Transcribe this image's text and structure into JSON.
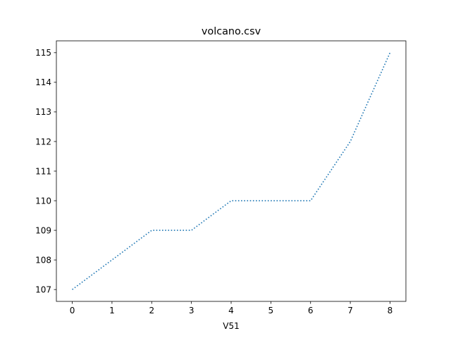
{
  "chart_data": {
    "type": "line",
    "title": "volcano.csv",
    "xlabel": "V51",
    "ylabel": "",
    "x": [
      0,
      1,
      2,
      3,
      4,
      5,
      6,
      7,
      8
    ],
    "series": [
      {
        "values": [
          107,
          108,
          109,
          109,
          110,
          110,
          110,
          112,
          115
        ],
        "color": "#1f77b4",
        "line_style": "dotted"
      }
    ],
    "xlim": [
      -0.4,
      8.4
    ],
    "ylim": [
      106.6,
      115.4
    ],
    "xticks": [
      0,
      1,
      2,
      3,
      4,
      5,
      6,
      7,
      8
    ],
    "yticks": [
      107,
      108,
      109,
      110,
      111,
      112,
      113,
      114,
      115
    ],
    "grid": false,
    "legend": "none"
  }
}
